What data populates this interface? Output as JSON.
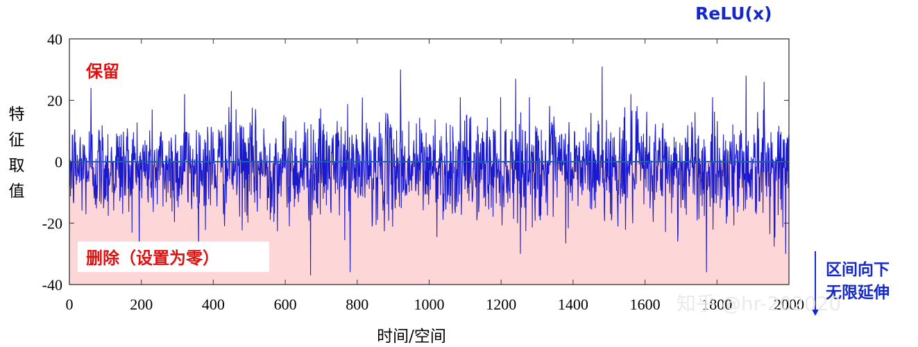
{
  "chart_data": {
    "type": "line",
    "title": "ReLU(x)",
    "xlabel": "时间/空间",
    "ylabel": "特征取值",
    "xlim": [
      0,
      2000
    ],
    "ylim": [
      -40,
      40
    ],
    "xticks": [
      0,
      200,
      400,
      600,
      800,
      1000,
      1200,
      1400,
      1600,
      1800,
      2000
    ],
    "yticks": [
      40,
      20,
      0,
      -20,
      -40
    ],
    "series": [
      {
        "color": "#1a1acd",
        "x_range": [
          0,
          2000
        ],
        "n_points": 2000,
        "distribution": "noise centered near -2, mostly between -25 and 20",
        "peaks": [
          {
            "x": 60,
            "y": 24
          },
          {
            "x": 320,
            "y": 22
          },
          {
            "x": 450,
            "y": 23
          },
          {
            "x": 920,
            "y": 30
          },
          {
            "x": 1240,
            "y": 27
          },
          {
            "x": 1480,
            "y": 31
          },
          {
            "x": 1560,
            "y": 22
          },
          {
            "x": 1880,
            "y": 28
          },
          {
            "x": 1930,
            "y": 26
          }
        ],
        "troughs": [
          {
            "x": 670,
            "y": -37
          },
          {
            "x": 780,
            "y": -36
          },
          {
            "x": 1690,
            "y": -26
          },
          {
            "x": 1770,
            "y": -36
          },
          {
            "x": 1990,
            "y": -30
          }
        ]
      }
    ],
    "zero_line": 0,
    "shaded_region": {
      "from": -40,
      "to": 0,
      "color": "#fdd7d7"
    },
    "annotations": {
      "keep": "保留",
      "delete": "删除（设置为零）",
      "side_line1": "区间向下",
      "side_line2": "无限延伸"
    },
    "watermark": "知乎 @hr-202020",
    "grid": false
  }
}
